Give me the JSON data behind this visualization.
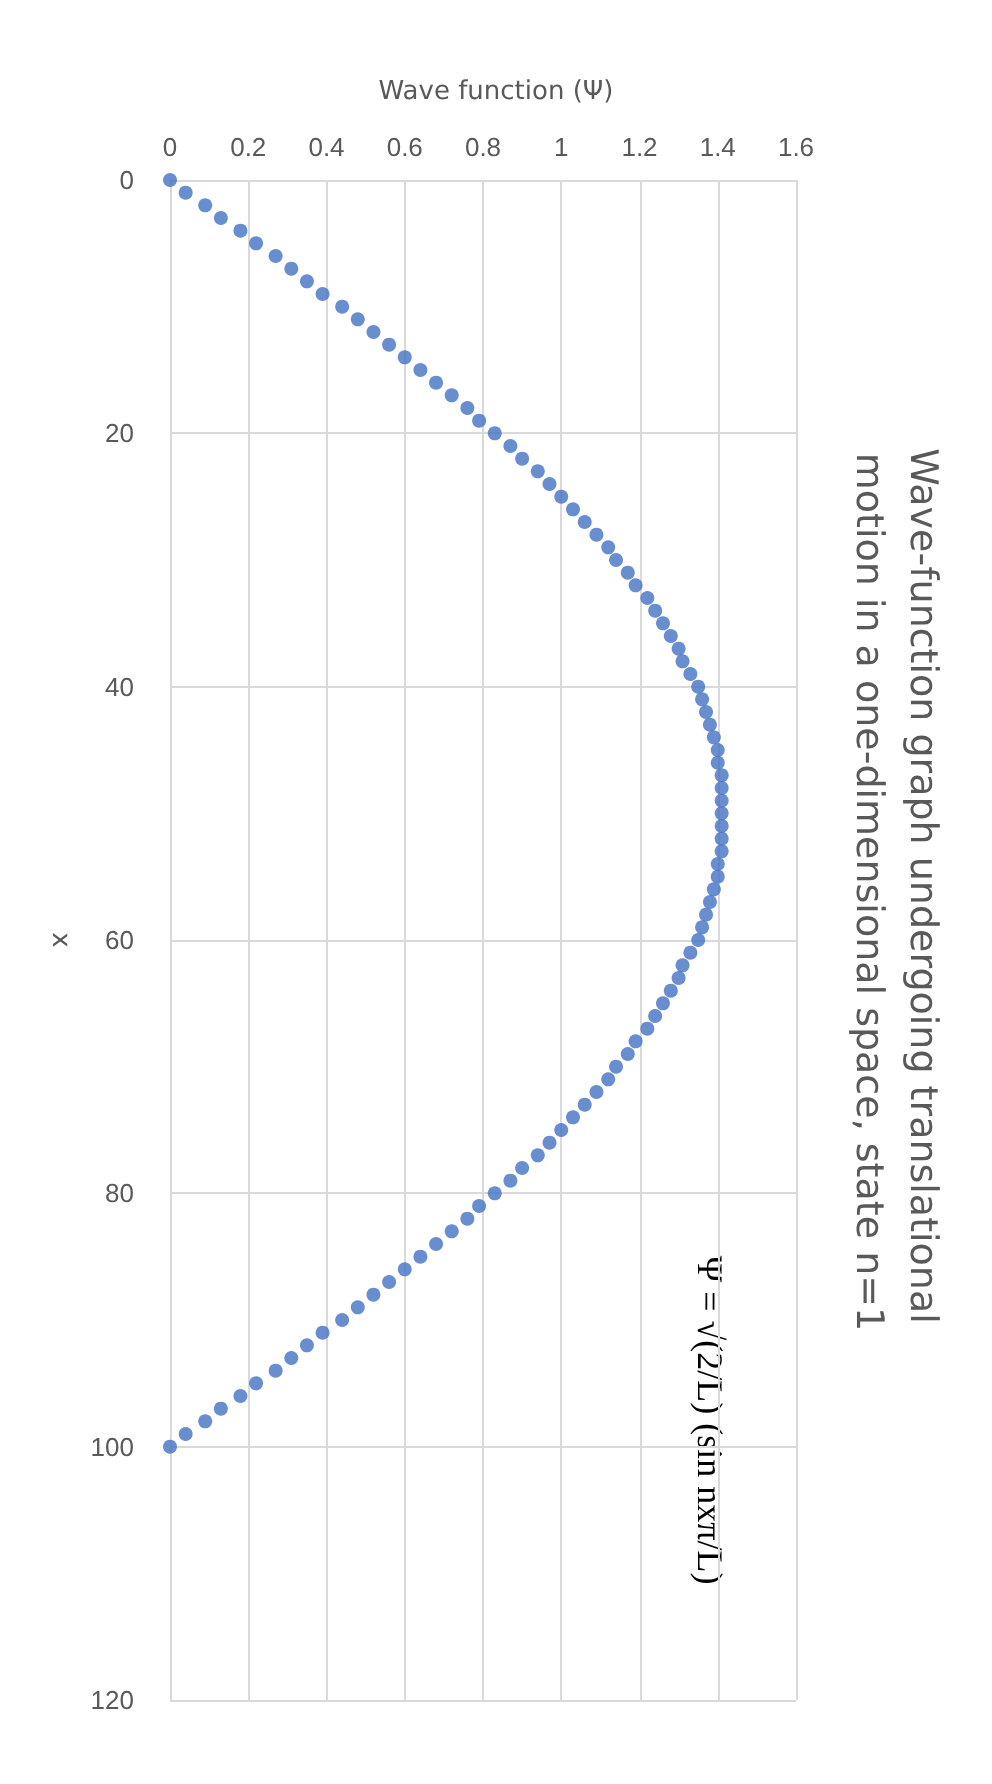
{
  "chart_data": {
    "type": "scatter",
    "title": "Wave-function graph undergoing translational motion in a one-dimensional space, state n=1",
    "xlabel": "Wave function (Ψ)",
    "ylabel": "x",
    "annotations": [
      "Ψ = √(2/L) (sin nxπ/L)"
    ],
    "x": [
      0,
      0.04,
      0.09,
      0.13,
      0.18,
      0.22,
      0.27,
      0.31,
      0.35,
      0.39,
      0.44,
      0.48,
      0.52,
      0.56,
      0.6,
      0.64,
      0.68,
      0.72,
      0.76,
      0.79,
      0.83,
      0.87,
      0.9,
      0.94,
      0.97,
      1.0,
      1.03,
      1.06,
      1.09,
      1.12,
      1.14,
      1.17,
      1.19,
      1.22,
      1.24,
      1.26,
      1.28,
      1.3,
      1.31,
      1.33,
      1.35,
      1.36,
      1.37,
      1.38,
      1.39,
      1.4,
      1.4,
      1.41,
      1.41,
      1.41,
      1.41,
      1.41,
      1.41,
      1.41,
      1.4,
      1.4,
      1.39,
      1.38,
      1.37,
      1.36,
      1.35,
      1.33,
      1.31,
      1.3,
      1.28,
      1.26,
      1.24,
      1.22,
      1.19,
      1.17,
      1.14,
      1.12,
      1.09,
      1.06,
      1.03,
      1.0,
      0.97,
      0.94,
      0.9,
      0.87,
      0.83,
      0.79,
      0.76,
      0.72,
      0.68,
      0.64,
      0.6,
      0.56,
      0.52,
      0.48,
      0.44,
      0.39,
      0.35,
      0.31,
      0.27,
      0.22,
      0.18,
      0.13,
      0.09,
      0.04,
      0
    ],
    "series": [
      {
        "color": "#4472c4",
        "values": [
          0,
          1,
          2,
          3,
          4,
          5,
          6,
          7,
          8,
          9,
          10,
          11,
          12,
          13,
          14,
          15,
          16,
          17,
          18,
          19,
          20,
          21,
          22,
          23,
          24,
          25,
          26,
          27,
          28,
          29,
          30,
          31,
          32,
          33,
          34,
          35,
          36,
          37,
          38,
          39,
          40,
          41,
          42,
          43,
          44,
          45,
          46,
          47,
          48,
          49,
          50,
          51,
          52,
          53,
          54,
          55,
          56,
          57,
          58,
          59,
          60,
          61,
          62,
          63,
          64,
          65,
          66,
          67,
          68,
          69,
          70,
          71,
          72,
          73,
          74,
          75,
          76,
          77,
          78,
          79,
          80,
          81,
          82,
          83,
          84,
          85,
          86,
          87,
          88,
          89,
          90,
          91,
          92,
          93,
          94,
          95,
          96,
          97,
          98,
          99,
          100
        ]
      }
    ],
    "xlim": [
      0,
      1.6
    ],
    "xticks": [
      0,
      0.2,
      0.4,
      0.6,
      0.8,
      1,
      1.2,
      1.4,
      1.6
    ],
    "ylim": [
      120,
      0
    ],
    "yticks": [
      0,
      20,
      40,
      60,
      80,
      100,
      120
    ],
    "grid": true,
    "marker": "circle"
  }
}
